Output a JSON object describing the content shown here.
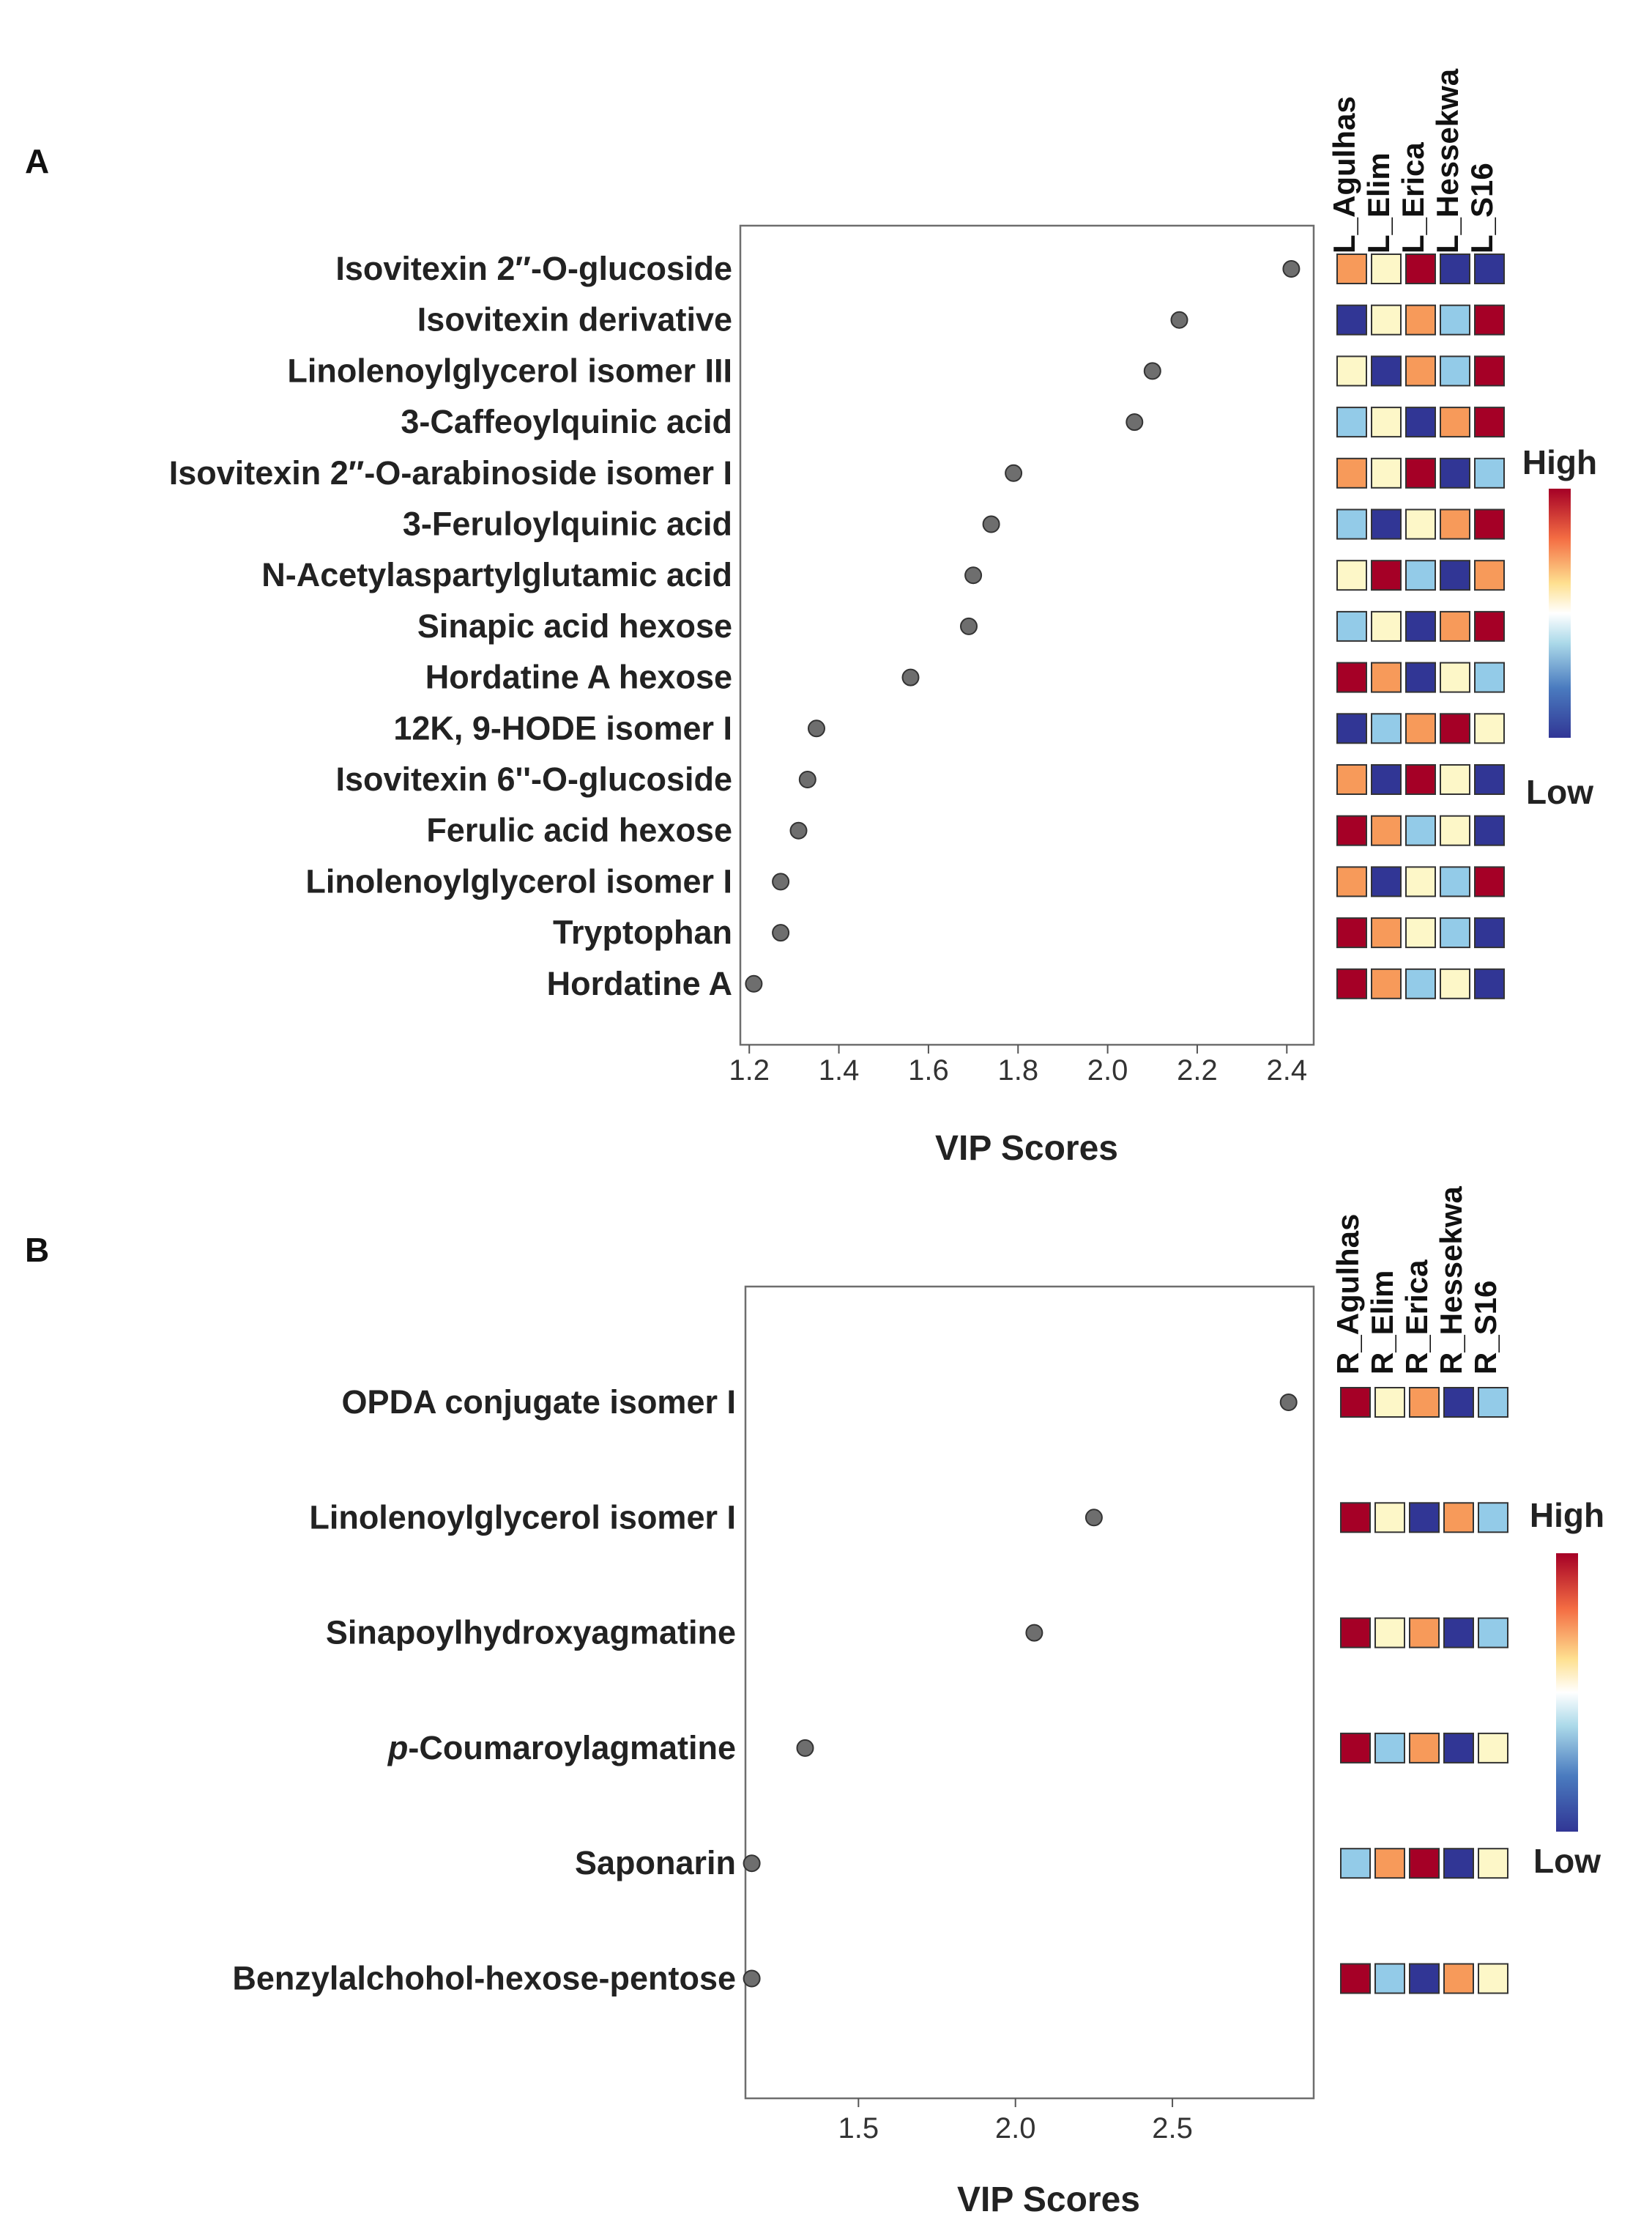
{
  "colors": {
    "high": "#a50026",
    "orange": "#f79a5a",
    "cream": "#fdf7c8",
    "light_blue": "#93cbe8",
    "low": "#313695",
    "dot": "#6e6e6e",
    "frame": "#6e6e6e"
  },
  "panels": {
    "A": {
      "label": "A",
      "xlabel": "VIP Scores",
      "xticks": [
        "1.2",
        "1.4",
        "1.6",
        "1.8",
        "2.0",
        "2.2",
        "2.4"
      ],
      "samples": [
        "L_Agulhas",
        "L_Elim",
        "L_Erica",
        "L_Hessekwa",
        "L_S16"
      ],
      "legend": {
        "high": "High",
        "low": "Low"
      }
    },
    "B": {
      "label": "B",
      "xlabel": "VIP Scores",
      "xticks": [
        "1.5",
        "2.0",
        "2.5"
      ],
      "samples": [
        "R_Agulhas",
        "R_Elim",
        "R_Erica",
        "R_Hessekwa",
        "R_S16"
      ],
      "legend": {
        "high": "High",
        "low": "Low"
      }
    }
  },
  "chart_data": [
    {
      "type": "scatter",
      "panel": "A",
      "title": "",
      "xlabel": "VIP Scores",
      "ylabel": "",
      "xlim": [
        1.18,
        2.46
      ],
      "xticks": [
        1.2,
        1.4,
        1.6,
        1.8,
        2.0,
        2.2,
        2.4
      ],
      "grid": false,
      "categories": [
        "Isovitexin 2″-O-glucoside",
        "Isovitexin derivative",
        "Linolenoylglycerol isomer III",
        "3-Caffeoylquinic acid",
        "Isovitexin 2″-O-arabinoside isomer I",
        "3-Feruloylquinic acid",
        "N-Acetylaspartylglutamic acid",
        "Sinapic acid hexose",
        "Hordatine A hexose",
        "12K, 9-HODE isomer I",
        "Isovitexin 6''-O-glucoside",
        "Ferulic acid hexose",
        "Linolenoylglycerol isomer I",
        "Tryptophan",
        "Hordatine A"
      ],
      "values": [
        2.41,
        2.16,
        2.1,
        2.06,
        1.79,
        1.74,
        1.7,
        1.69,
        1.56,
        1.35,
        1.33,
        1.31,
        1.27,
        1.27,
        1.21
      ],
      "heatmap": {
        "samples": [
          "L_Agulhas",
          "L_Elim",
          "L_Erica",
          "L_Hessekwa",
          "L_S16"
        ],
        "scale": {
          "high": "High",
          "low": "Low"
        },
        "levels": [
          [
            4,
            3,
            5,
            1,
            1
          ],
          [
            1,
            3,
            4,
            2,
            5
          ],
          [
            3,
            1,
            4,
            2,
            5
          ],
          [
            2,
            3,
            1,
            4,
            5
          ],
          [
            4,
            3,
            5,
            1,
            2
          ],
          [
            2,
            1,
            3,
            4,
            5
          ],
          [
            3,
            5,
            2,
            1,
            4
          ],
          [
            2,
            3,
            1,
            4,
            5
          ],
          [
            5,
            4,
            1,
            3,
            2
          ],
          [
            1,
            2,
            4,
            5,
            3
          ],
          [
            4,
            1,
            5,
            3,
            1
          ],
          [
            5,
            4,
            2,
            3,
            1
          ],
          [
            4,
            1,
            3,
            2,
            5
          ],
          [
            5,
            4,
            3,
            2,
            1
          ],
          [
            5,
            4,
            2,
            3,
            1
          ]
        ]
      }
    },
    {
      "type": "scatter",
      "panel": "B",
      "title": "",
      "xlabel": "VIP Scores",
      "ylabel": "",
      "xlim": [
        1.14,
        2.95
      ],
      "xticks": [
        1.5,
        2.0,
        2.5
      ],
      "grid": false,
      "categories": [
        "OPDA conjugate isomer I",
        "Linolenoylglycerol isomer I",
        "Sinapoylhydroxyagmatine",
        "p-Coumaroylagmatine",
        "Saponarin",
        "Benzylalchohol-hexose-pentose"
      ],
      "category_prefix_italic": [
        "",
        "",
        "",
        "p",
        "",
        ""
      ],
      "category_suffix": [
        "OPDA conjugate isomer I",
        "Linolenoylglycerol isomer I",
        "Sinapoylhydroxyagmatine",
        "-Coumaroylagmatine",
        "Saponarin",
        "Benzylalchohol-hexose-pentose"
      ],
      "values": [
        2.87,
        2.25,
        2.06,
        1.33,
        1.16,
        1.16
      ],
      "heatmap": {
        "samples": [
          "R_Agulhas",
          "R_Elim",
          "R_Erica",
          "R_Hessekwa",
          "R_S16"
        ],
        "scale": {
          "high": "High",
          "low": "Low"
        },
        "levels": [
          [
            5,
            3,
            4,
            1,
            2
          ],
          [
            5,
            3,
            1,
            4,
            2
          ],
          [
            5,
            3,
            4,
            1,
            2
          ],
          [
            5,
            2,
            4,
            1,
            3
          ],
          [
            2,
            4,
            5,
            1,
            3
          ],
          [
            5,
            2,
            1,
            4,
            3
          ]
        ]
      }
    }
  ]
}
